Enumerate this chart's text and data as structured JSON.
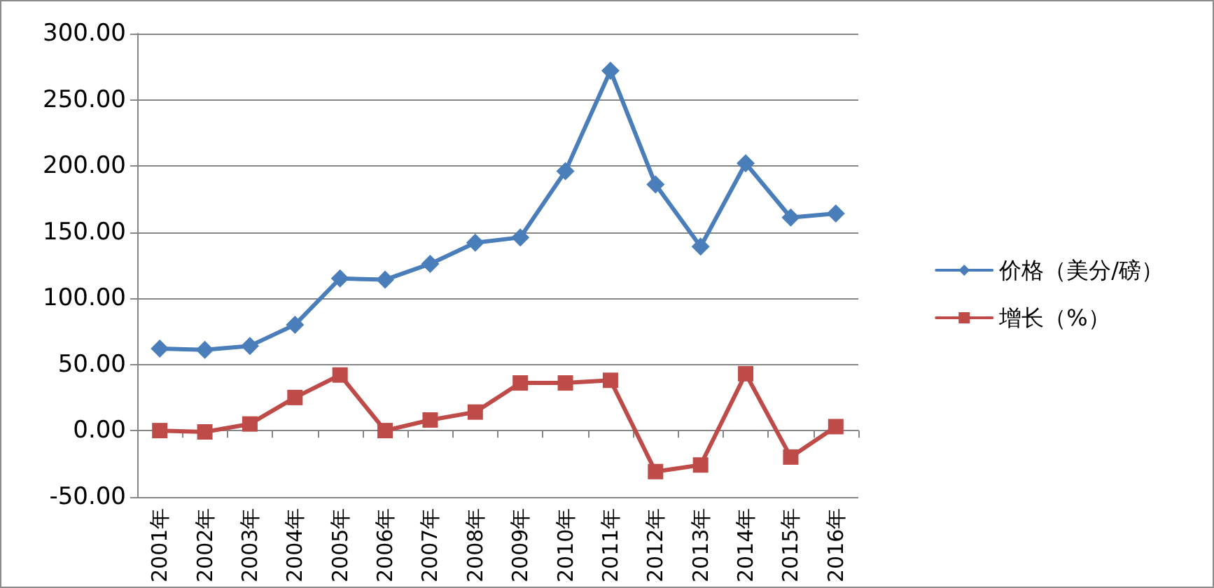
{
  "chart_data": {
    "type": "line",
    "categories": [
      "2001年",
      "2002年",
      "2003年",
      "2004年",
      "2005年",
      "2006年",
      "2007年",
      "2008年",
      "2009年",
      "2010年",
      "2011年",
      "2012年",
      "2013年",
      "2014年",
      "2015年",
      "2016年"
    ],
    "series": [
      {
        "name": "价格（美分/磅）",
        "color": "#4a7ebb",
        "marker": "diamond",
        "values": [
          62,
          61,
          64,
          80,
          115,
          114,
          126,
          142,
          146,
          196,
          272,
          186,
          139,
          202,
          161,
          164
        ]
      },
      {
        "name": "增长（%）",
        "color": "#be4b48",
        "marker": "square",
        "values": [
          0,
          -1,
          5,
          25,
          42,
          0,
          8,
          14,
          36,
          36,
          38,
          -31,
          -26,
          43,
          -20,
          3
        ]
      }
    ],
    "ylim": [
      -50,
      300
    ],
    "yticks": [
      {
        "value": -50,
        "label": "-50.00"
      },
      {
        "value": 0,
        "label": "0.00"
      },
      {
        "value": 50,
        "label": "50.00"
      },
      {
        "value": 100,
        "label": "100.00"
      },
      {
        "value": 150,
        "label": "150.00"
      },
      {
        "value": 200,
        "label": "200.00"
      },
      {
        "value": 250,
        "label": "250.00"
      },
      {
        "value": 300,
        "label": "300.00"
      }
    ],
    "grid": "y",
    "legend": "right",
    "line_style": "solid"
  }
}
